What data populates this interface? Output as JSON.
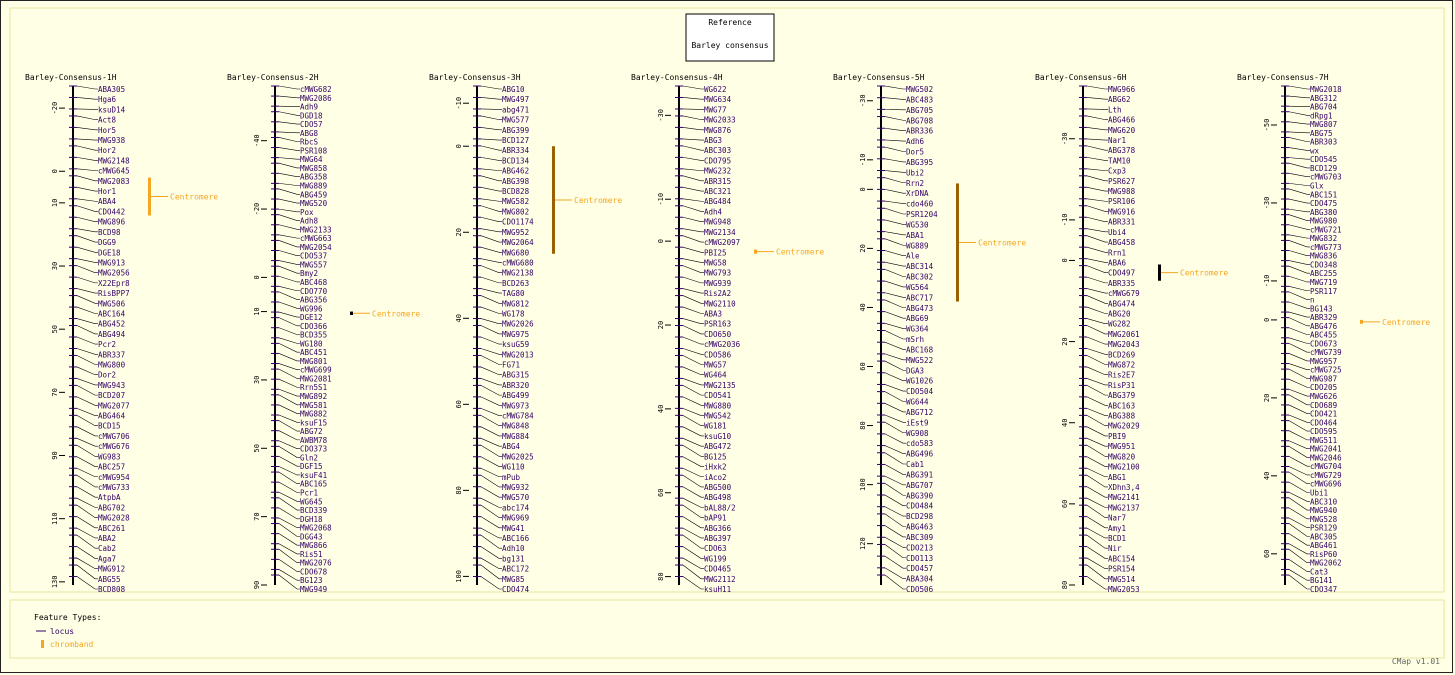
{
  "header": {
    "reference_label": "Reference",
    "reference_name": "Barley consensus"
  },
  "legend": {
    "title": "Feature Types:",
    "items": [
      {
        "label": "locus"
      },
      {
        "label": "chromband"
      }
    ]
  },
  "footer": {
    "version": "CMap v1.01"
  },
  "colors": {
    "background": "#ffffe6",
    "locus": "#330066",
    "label": "#330066",
    "centromere": "#f5a623",
    "centromere_dark": "#9b6000",
    "centromere_black": "#000000",
    "panel_border": "#e6e6a0"
  },
  "chromosomes": [
    {
      "name": "Barley-Consensus-1H",
      "range": [
        -27,
        131
      ],
      "ticks": [
        -20,
        0,
        10,
        30,
        50,
        70,
        90,
        110,
        130
      ],
      "centromere": {
        "label": "Centromere",
        "start": 2,
        "end": 14,
        "color": "#f5a623"
      },
      "loci": [
        "ABA305",
        "Hga6",
        "ksuD14",
        "Act8",
        "Hor5",
        "MWG938",
        "Hor2",
        "MWG2148",
        "cMWG645",
        "MWG2083",
        "Hor1",
        "ABA4",
        "CDO442",
        "MWG896",
        "BCD98",
        "DGG9",
        "DGE18",
        "MWG913",
        "MWG2056",
        "X22Epr8",
        "RisBPP7",
        "MWG506",
        "ABC164",
        "ABG452",
        "ABG494",
        "Pcr2",
        "ABR337",
        "MWG800",
        "Dor2",
        "MWG943",
        "BCD207",
        "MWG2077",
        "ABG464",
        "BCD15",
        "cMWG706",
        "cMWG676",
        "WG983",
        "ABC257",
        "cMWG954",
        "cMWG733",
        "AtpbA",
        "ABG702",
        "MWG2028",
        "ABC261",
        "ABA2",
        "Cab2",
        "Aga7",
        "MWG912",
        "ABG55",
        "BCD808"
      ]
    },
    {
      "name": "Barley-Consensus-2H",
      "range": [
        -56,
        90
      ],
      "ticks": [
        -40,
        -20,
        0,
        10,
        30,
        50,
        70,
        90
      ],
      "centromere": {
        "label": "Centromere",
        "start": 10,
        "end": 11,
        "color": "#000000"
      },
      "loci": [
        "cMWG682",
        "MWG2086",
        "Adh9",
        "DGD18",
        "CDO57",
        "ABG8",
        "RbcS",
        "PSR108",
        "MWG64",
        "MWG858",
        "ABG358",
        "MWG889",
        "ABG459",
        "MWG520",
        "Pox",
        "Adh8",
        "MWG2133",
        "cMWG663",
        "MWG2054",
        "CDO537",
        "MWG557",
        "Bmy2",
        "ABC468",
        "CDO770",
        "ABG356",
        "WG996",
        "DGE12",
        "CDO366",
        "BCD355",
        "WG180",
        "ABC451",
        "MWG801",
        "cMWG699",
        "MWG2081",
        "Rrn5S1",
        "MWG892",
        "MWG581",
        "MWG882",
        "ksuF15",
        "ABG72",
        "AWBM78",
        "CDO373",
        "Gln2",
        "DGF15",
        "ksuF41",
        "ABC165",
        "Pcr1",
        "WG645",
        "BCD339",
        "DGH18",
        "MWG2068",
        "DGG43",
        "MWG866",
        "Ris51",
        "MWG2076",
        "CDO678",
        "BG123",
        "MWG949"
      ]
    },
    {
      "name": "Barley-Consensus-3H",
      "range": [
        -14,
        102
      ],
      "ticks": [
        -10,
        0,
        20,
        40,
        60,
        80,
        100
      ],
      "centromere": {
        "label": "Centromere",
        "start": 0,
        "end": 25,
        "color": "#9b6000"
      },
      "loci": [
        "ABG10",
        "MWG497",
        "abg471",
        "MWG577",
        "ABG399",
        "BCD127",
        "ABR334",
        "BCD134",
        "ABG462",
        "ABG398",
        "BCD828",
        "MWG582",
        "MWG802",
        "CDO1174",
        "MWG952",
        "MWG2064",
        "MWG680",
        "cMWG680",
        "MWG2138",
        "BCD263",
        "TAG80",
        "MWG812",
        "WG178",
        "MWG2026",
        "MWG975",
        "ksuG59",
        "MWG2013",
        "FG71",
        "ABG315",
        "ABR320",
        "ABG499",
        "MWG973",
        "cMWG784",
        "MWG848",
        "MWG884",
        "ABG4",
        "MWG2025",
        "WG110",
        "mPub",
        "MWG932",
        "MWG570",
        "abc174",
        "MWG969",
        "MWG41",
        "ABC166",
        "Adh10",
        "bg131",
        "ABC172",
        "MWG85",
        "CDO474"
      ]
    },
    {
      "name": "Barley-Consensus-4H",
      "range": [
        -37,
        82
      ],
      "ticks": [
        -30,
        -10,
        0,
        20,
        40,
        60,
        80
      ],
      "centromere": {
        "label": "Centromere",
        "start": 2,
        "end": 3,
        "color": "#f5a623"
      },
      "loci": [
        "WG622",
        "MWG634",
        "MWG77",
        "MWG2033",
        "MWG876",
        "ABG3",
        "ABC303",
        "CDO795",
        "MWG232",
        "ABR315",
        "ABC321",
        "ABG484",
        "Adh4",
        "MWG948",
        "MWG2134",
        "cMWG2097",
        "PBI25",
        "MWG58",
        "MWG793",
        "MWG939",
        "Ris2A2",
        "MWG2110",
        "ABA3",
        "PSR163",
        "CDO650",
        "cMWG2036",
        "CDO586",
        "MWG57",
        "WG464",
        "MWG2135",
        "CDO541",
        "MWG880",
        "MWG542",
        "WG181",
        "ksuG10",
        "ABG472",
        "BG125",
        "iHxk2",
        "iAco2",
        "ABG500",
        "ABG498",
        "bAL88/2",
        "bAP91",
        "ABG366",
        "ABG397",
        "CDO63",
        "WG199",
        "CDO465",
        "MWG2112",
        "ksuH11"
      ]
    },
    {
      "name": "Barley-Consensus-5H",
      "range": [
        -35,
        134
      ],
      "ticks": [
        -30,
        -10,
        0,
        20,
        40,
        60,
        80,
        100,
        120
      ],
      "centromere": {
        "label": "Centromere",
        "start": -2,
        "end": 38,
        "color": "#9b6000"
      },
      "loci": [
        "MWG502",
        "ABC483",
        "ABG705",
        "ABG708",
        "ABR336",
        "Adh6",
        "Dor5",
        "ABG395",
        "Ubi2",
        "Rrn2",
        "XrDNA",
        "cdo460",
        "PSR1204",
        "WG530",
        "ABA1",
        "WG889",
        "Ale",
        "ABC314",
        "ABC302",
        "WG564",
        "ABC717",
        "ABG473",
        "ABG69",
        "WG364",
        "mSrh",
        "ABC168",
        "MWG522",
        "DGA3",
        "WG1026",
        "CDO504",
        "WG644",
        "ABG712",
        "iEst9",
        "WG908",
        "cdo583",
        "ABG496",
        "Cab1",
        "ABG391",
        "ABG707",
        "ABG390",
        "CDO484",
        "BCD298",
        "ABG463",
        "ABC309",
        "CDO213",
        "CDO113",
        "CDO457",
        "ABA304",
        "CDO506"
      ]
    },
    {
      "name": "Barley-Consensus-6H",
      "range": [
        -43,
        80
      ],
      "ticks": [
        -30,
        -10,
        0,
        20,
        40,
        60,
        80
      ],
      "centromere": {
        "label": "Centromere",
        "start": 1,
        "end": 5,
        "color": "#000000"
      },
      "loci": [
        "MWG966",
        "ABG62",
        "Lth",
        "ABG466",
        "MWG620",
        "Nar1",
        "ABG378",
        "TAM10",
        "Cxp3",
        "PSR627",
        "MWG988",
        "PSR106",
        "MWG916",
        "ABR331",
        "Ubi4",
        "ABG458",
        "Rrn1",
        "ABA6",
        "CDO497",
        "ABR335",
        "cMWG679",
        "ABG474",
        "ABG20",
        "WG282",
        "MWG2061",
        "MWG2043",
        "BCD269",
        "MWG872",
        "Ris2E7",
        "RisP31",
        "ABG379",
        "ABC163",
        "ABG388",
        "MWG2029",
        "PBI9",
        "MWG951",
        "MWG820",
        "MWG2100",
        "ABG1",
        "XDhn3,4",
        "MWG2141",
        "MWG2137",
        "Nar7",
        "Amy1",
        "BCD1",
        "Nir",
        "ABC154",
        "PSR154",
        "MWG514",
        "MWG2053"
      ]
    },
    {
      "name": "Barley-Consensus-7H",
      "range": [
        -60,
        68
      ],
      "ticks": [
        -50,
        -30,
        -10,
        0,
        20,
        40,
        60
      ],
      "centromere": {
        "label": "Centromere",
        "start": 0,
        "end": 1,
        "color": "#f5a623"
      },
      "loci": [
        "MWG2018",
        "ABG312",
        "ABG704",
        "dRpg1",
        "MWG807",
        "ABG75",
        "ABR303",
        "wx",
        "CDO545",
        "BCD129",
        "cMWG703",
        "Glx",
        "ABC151",
        "CDO475",
        "ABG380",
        "MWG980",
        "cMWG721",
        "MWG832",
        "cMWG773",
        "MWG836",
        "CDO348",
        "ABC255",
        "MWG719",
        "PSR117",
        "n",
        "BG143",
        "ABR329",
        "ABG476",
        "ABC455",
        "CDO673",
        "cMWG739",
        "MWG957",
        "cMWG725",
        "MWG987",
        "CDO205",
        "MWG626",
        "CDO689",
        "CDO421",
        "CDO464",
        "CDO595",
        "MWG511",
        "MWG2041",
        "MWG2046",
        "cMWG704",
        "cMWG729",
        "cMWG696",
        "Ubi1",
        "ABC310",
        "MWG940",
        "MWG528",
        "PSR129",
        "ABC305",
        "ABG461",
        "RisP60",
        "MWG2062",
        "Cat3",
        "BG141",
        "CDO347"
      ]
    }
  ]
}
